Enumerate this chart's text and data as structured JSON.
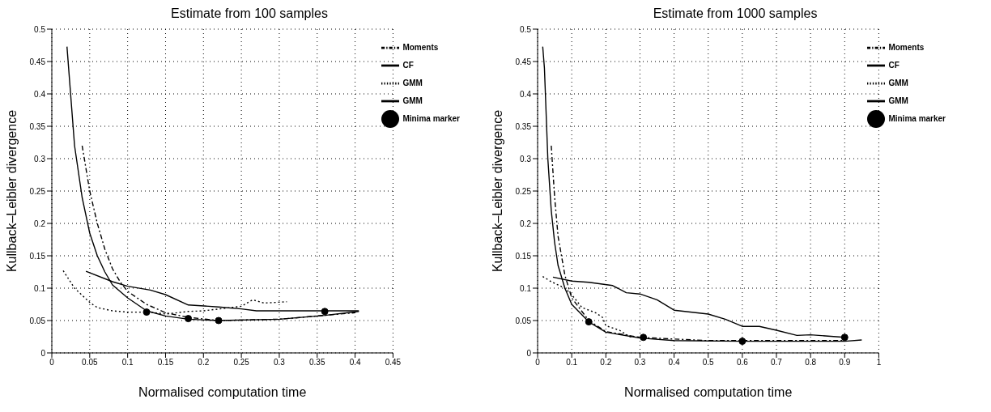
{
  "chart_data": [
    {
      "type": "line",
      "title": "Estimate from 100 samples",
      "xlabel": "Normalised computation time",
      "ylabel": "Kullback–Leibler divergence",
      "xlim": [
        0,
        0.45
      ],
      "xticks": [
        0,
        0.05,
        0.1,
        0.15,
        0.2,
        0.25,
        0.3,
        0.35,
        0.4,
        0.45
      ],
      "ylim": [
        0,
        0.5
      ],
      "yticks": [
        0,
        0.05,
        0.1,
        0.15,
        0.2,
        0.25,
        0.3,
        0.35,
        0.4,
        0.45,
        0.5
      ],
      "grid": true,
      "legend": "top right",
      "series": [
        {
          "name": "Moments",
          "color": "#000000",
          "line_style": "dashed",
          "x": [
            0.04,
            0.05,
            0.06,
            0.07,
            0.08,
            0.09,
            0.1,
            0.125,
            0.15,
            0.18,
            0.22,
            0.3,
            0.36,
            0.4
          ],
          "values": [
            0.32,
            0.25,
            0.2,
            0.16,
            0.13,
            0.11,
            0.095,
            0.075,
            0.062,
            0.055,
            0.05,
            0.052,
            0.058,
            0.062
          ]
        },
        {
          "name": "CF",
          "color": "#000000",
          "line_style": "solid",
          "x": [
            0.02,
            0.03,
            0.04,
            0.05,
            0.06,
            0.07,
            0.08,
            0.1,
            0.125,
            0.15,
            0.18,
            0.22,
            0.3,
            0.36,
            0.405
          ],
          "values": [
            0.473,
            0.32,
            0.24,
            0.185,
            0.15,
            0.125,
            0.105,
            0.085,
            0.065,
            0.057,
            0.052,
            0.05,
            0.052,
            0.058,
            0.064
          ]
        },
        {
          "name": "GMM",
          "color": "#000000",
          "line_style": "dotted",
          "x": [
            0.015,
            0.03,
            0.05,
            0.06,
            0.08,
            0.1,
            0.13,
            0.15,
            0.18,
            0.2,
            0.25,
            0.265,
            0.28,
            0.31
          ],
          "values": [
            0.127,
            0.1,
            0.078,
            0.07,
            0.065,
            0.063,
            0.063,
            0.06,
            0.064,
            0.065,
            0.072,
            0.082,
            0.077,
            0.079
          ]
        },
        {
          "name": "GMM",
          "color": "#000000",
          "line_style": "solid",
          "x": [
            0.045,
            0.08,
            0.1,
            0.13,
            0.15,
            0.18,
            0.22,
            0.25,
            0.27,
            0.405
          ],
          "values": [
            0.126,
            0.11,
            0.103,
            0.097,
            0.09,
            0.074,
            0.071,
            0.068,
            0.065,
            0.065
          ]
        },
        {
          "name": "Minima marker",
          "type": "scatter",
          "color": "#000000",
          "marker": "circle",
          "x": [
            0.125,
            0.18,
            0.22,
            0.36
          ],
          "values": [
            0.063,
            0.053,
            0.05,
            0.064
          ]
        }
      ]
    },
    {
      "type": "line",
      "title": "Estimate from 1000 samples",
      "xlabel": "Normalised computation time",
      "ylabel": "Kullback–Leibler divergence",
      "xlim": [
        0,
        1
      ],
      "xticks": [
        0,
        0.1,
        0.2,
        0.3,
        0.4,
        0.5,
        0.6,
        0.7,
        0.8,
        0.9,
        1
      ],
      "ylim": [
        0,
        0.5
      ],
      "yticks": [
        0,
        0.05,
        0.1,
        0.15,
        0.2,
        0.25,
        0.3,
        0.35,
        0.4,
        0.45,
        0.5
      ],
      "grid": true,
      "legend": "top right",
      "series": [
        {
          "name": "Moments",
          "color": "#000000",
          "line_style": "dashed",
          "x": [
            0.04,
            0.05,
            0.06,
            0.08,
            0.1,
            0.15,
            0.2,
            0.3,
            0.5,
            0.9
          ],
          "values": [
            0.32,
            0.24,
            0.18,
            0.12,
            0.085,
            0.05,
            0.033,
            0.024,
            0.019,
            0.019
          ]
        },
        {
          "name": "CF",
          "color": "#000000",
          "line_style": "solid",
          "x": [
            0.015,
            0.02,
            0.03,
            0.04,
            0.05,
            0.06,
            0.08,
            0.1,
            0.15,
            0.2,
            0.3,
            0.4,
            0.6,
            0.9,
            0.95
          ],
          "values": [
            0.473,
            0.44,
            0.3,
            0.22,
            0.17,
            0.135,
            0.1,
            0.075,
            0.048,
            0.032,
            0.023,
            0.019,
            0.018,
            0.018,
            0.02
          ]
        },
        {
          "name": "GMM",
          "color": "#000000",
          "line_style": "dotted",
          "x": [
            0.015,
            0.04,
            0.08,
            0.1,
            0.13,
            0.17,
            0.19,
            0.2,
            0.24,
            0.27,
            0.31
          ],
          "values": [
            0.118,
            0.11,
            0.1,
            0.09,
            0.07,
            0.062,
            0.055,
            0.042,
            0.035,
            0.025,
            0.024
          ]
        },
        {
          "name": "GMM",
          "color": "#000000",
          "line_style": "solid",
          "x": [
            0.045,
            0.1,
            0.15,
            0.22,
            0.26,
            0.3,
            0.35,
            0.4,
            0.5,
            0.55,
            0.6,
            0.65,
            0.7,
            0.76,
            0.8,
            0.9
          ],
          "values": [
            0.117,
            0.111,
            0.109,
            0.104,
            0.093,
            0.091,
            0.082,
            0.066,
            0.06,
            0.052,
            0.041,
            0.041,
            0.035,
            0.027,
            0.028,
            0.024
          ]
        },
        {
          "name": "Minima marker",
          "type": "scatter",
          "color": "#000000",
          "marker": "circle",
          "x": [
            0.15,
            0.31,
            0.6,
            0.9
          ],
          "values": [
            0.048,
            0.024,
            0.018,
            0.024
          ]
        }
      ]
    }
  ]
}
